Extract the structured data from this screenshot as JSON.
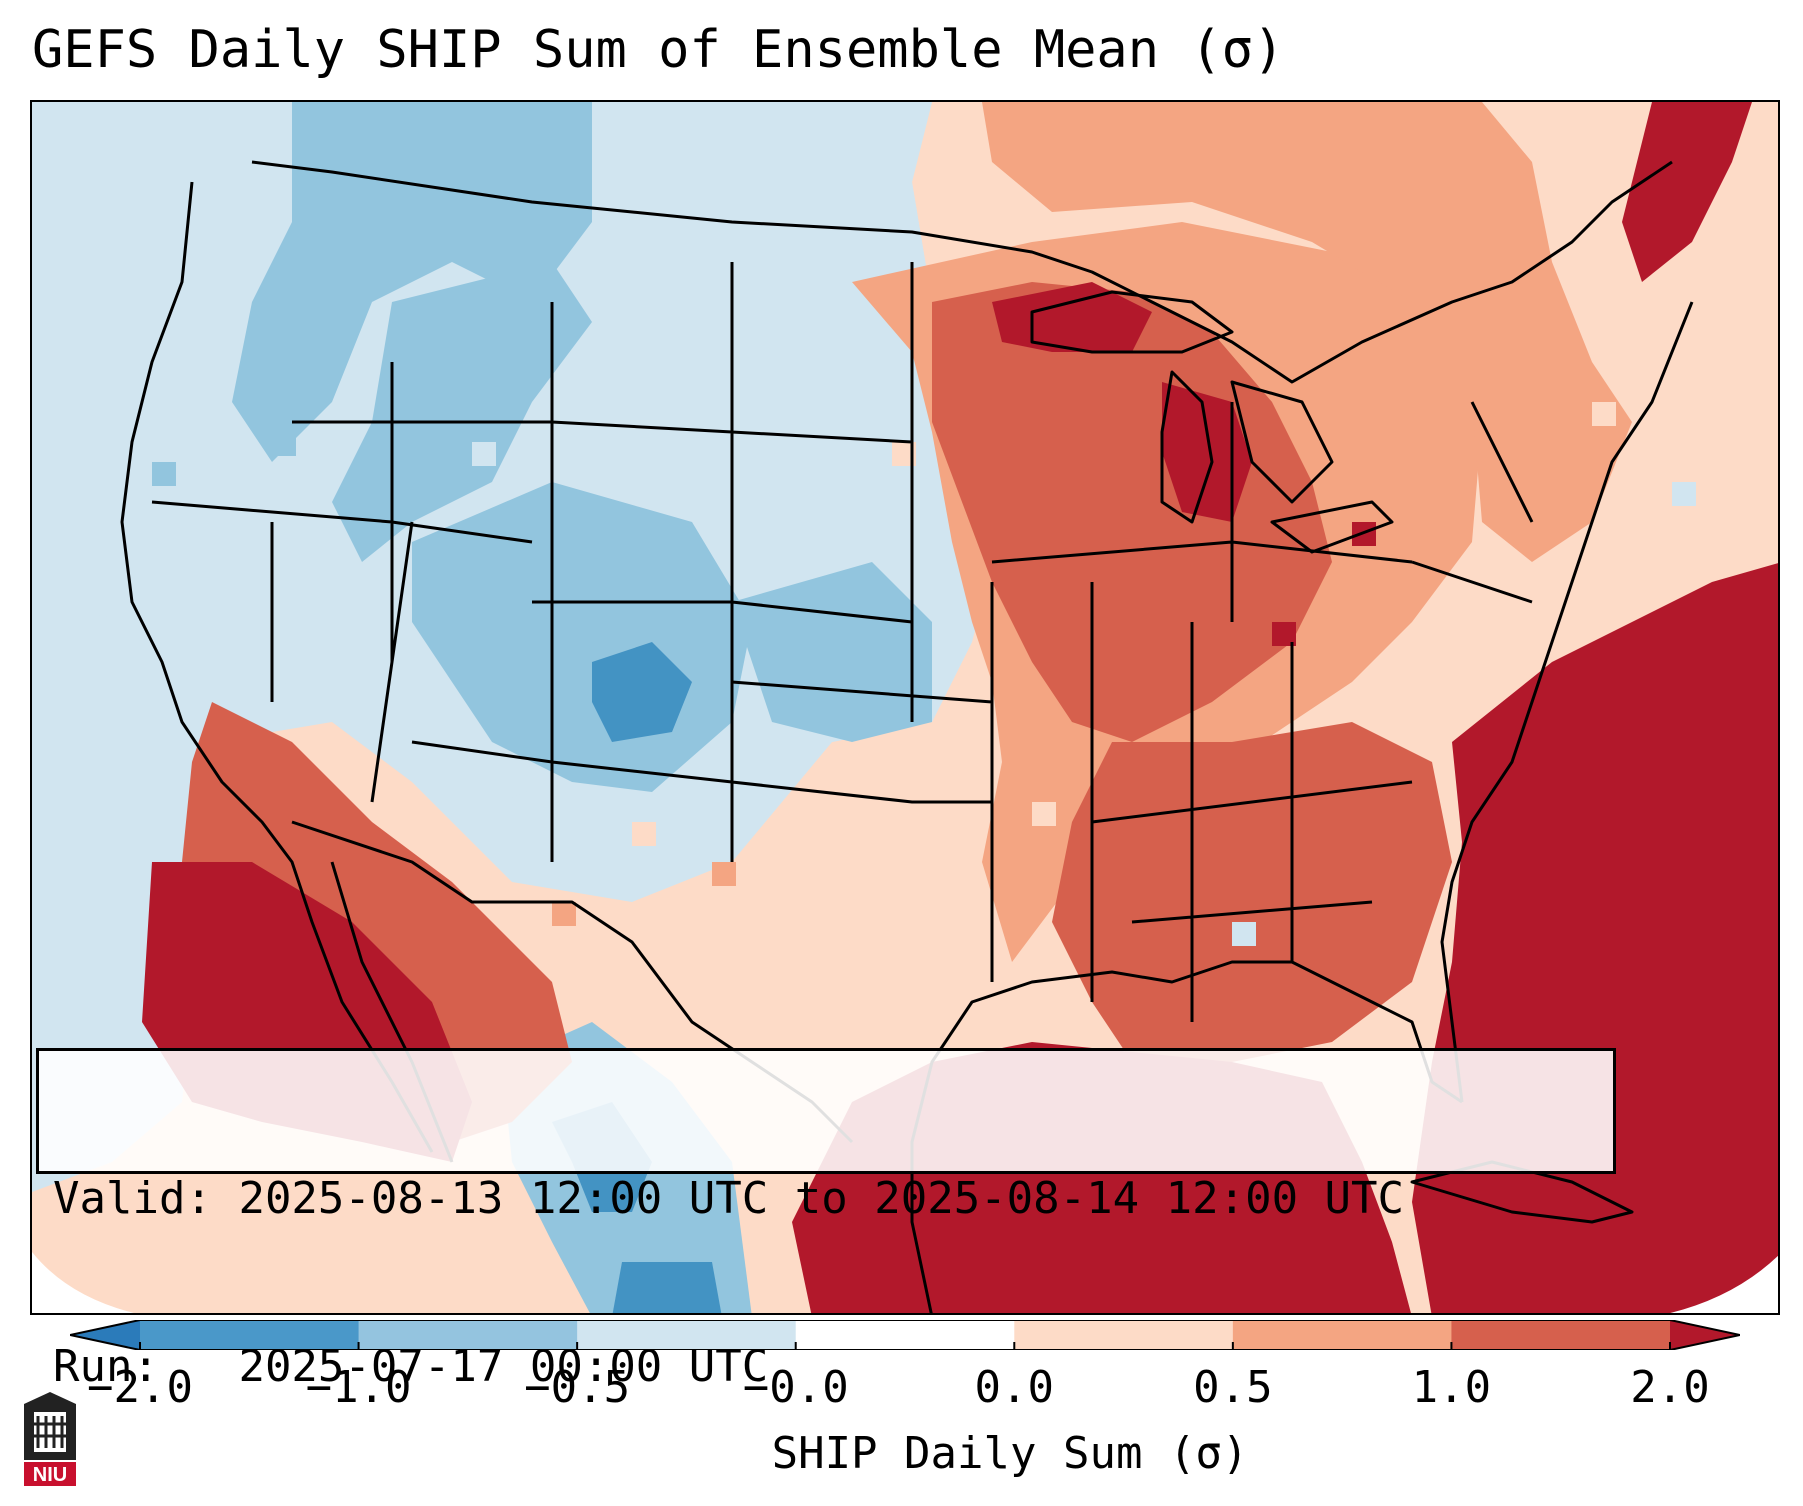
{
  "title": "GEFS Daily SHIP Sum of Ensemble Mean (σ)",
  "info": {
    "valid_label": "Valid:",
    "valid_value": "2025-08-13 12:00 UTC to 2025-08-14 12:00 UTC",
    "run_label": "Run:",
    "run_value": "2025-07-17 00:00 UTC"
  },
  "colorbar": {
    "label": "SHIP Daily Sum (σ)",
    "ticks": [
      "−2.0",
      "−1.0",
      "−0.5",
      "−0.0",
      "0.0",
      "0.5",
      "1.0",
      "2.0"
    ],
    "bin_colors": [
      "#2b7bba",
      "#4a98c9",
      "#94c4df",
      "#d1e5f0",
      "#ffffff",
      "#fddbc7",
      "#f4a582",
      "#d6604d",
      "#b2182b"
    ],
    "extend": "both"
  },
  "map": {
    "region": "Contiguous United States",
    "field": "SHIP daily sum anomaly",
    "colors": {
      "strong_neg": "#4393c3",
      "mod_neg": "#92c5de",
      "weak_neg": "#d1e5f0",
      "weak_pos": "#fddbc7",
      "mod_pos": "#f4a582",
      "strong_pos": "#d6604d",
      "extreme_pos": "#b2182b"
    }
  },
  "logo": {
    "text": "NIU",
    "icon": "niu-logo-icon"
  }
}
